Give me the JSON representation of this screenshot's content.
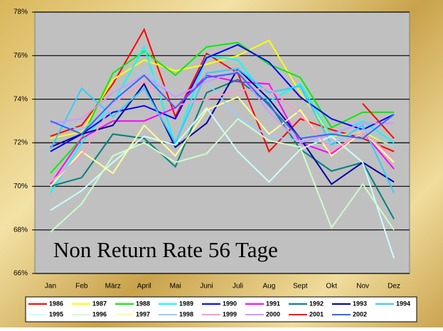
{
  "chart_data": {
    "type": "line",
    "annotation": "Non Return Rate 56 Tage",
    "categories": [
      "Jan",
      "Feb",
      "März",
      "April",
      "Mai",
      "Juni",
      "Juli",
      "Aug",
      "Sept",
      "Okt",
      "Nov",
      "Dez"
    ],
    "ylim": [
      66,
      78
    ],
    "yticks": [
      {
        "value": 66,
        "label": "66%"
      },
      {
        "value": 68,
        "label": "68%"
      },
      {
        "value": 70,
        "label": "70%"
      },
      {
        "value": 72,
        "label": "72%"
      },
      {
        "value": 74,
        "label": "74%"
      },
      {
        "value": 76,
        "label": "76%"
      },
      {
        "value": 78,
        "label": "78%"
      }
    ],
    "grid": true,
    "legend": "bottom",
    "series": [
      {
        "name": "1986",
        "color": "#ff0000",
        "values": [
          72.3,
          72.8,
          74.7,
          77.2,
          73.2,
          76.1,
          75.2,
          71.6,
          73.1,
          72.6,
          72.2,
          71.6
        ]
      },
      {
        "name": "1987",
        "color": "#ffff00",
        "values": [
          72.2,
          72.5,
          74.9,
          75.8,
          75.3,
          75.6,
          76.0,
          76.7,
          74.3,
          72.3,
          72.5,
          71.8
        ]
      },
      {
        "name": "1988",
        "color": "#00ee00",
        "values": [
          70.6,
          72.2,
          75.2,
          76.2,
          75.1,
          76.4,
          76.6,
          75.6,
          75.0,
          72.7,
          73.4,
          73.4
        ]
      },
      {
        "name": "1989",
        "color": "#00ffff",
        "values": [
          69.7,
          72.0,
          73.8,
          76.4,
          71.9,
          76.0,
          75.8,
          73.9,
          74.7,
          72.3,
          73.0,
          72.0
        ]
      },
      {
        "name": "1990",
        "color": "#0000ff",
        "values": [
          71.6,
          72.4,
          73.4,
          73.7,
          73.1,
          75.9,
          76.5,
          75.7,
          74.1,
          73.1,
          72.6,
          73.3
        ]
      },
      {
        "name": "1991",
        "color": "#ff00ff",
        "values": [
          70.1,
          72.2,
          73.0,
          73.0,
          73.6,
          75.1,
          74.8,
          74.7,
          72.0,
          71.5,
          72.5,
          70.8
        ]
      },
      {
        "name": "1992",
        "color": "#008080",
        "values": [
          70.0,
          70.4,
          72.4,
          72.2,
          70.9,
          74.3,
          74.9,
          73.8,
          71.7,
          70.7,
          71.1,
          68.5
        ]
      },
      {
        "name": "1993",
        "color": "#0000a0",
        "values": [
          71.8,
          72.4,
          72.8,
          74.7,
          71.8,
          72.9,
          75.4,
          74.0,
          72.2,
          70.1,
          71.1,
          70.2
        ]
      },
      {
        "name": "1994",
        "color": "#33ccff",
        "values": [
          71.7,
          74.5,
          73.2,
          74.5,
          72.0,
          75.2,
          75.4,
          74.3,
          74.6,
          71.9,
          72.8,
          69.7
        ]
      },
      {
        "name": "1995",
        "color": "#ccffff",
        "values": [
          68.9,
          69.8,
          71.1,
          72.3,
          71.9,
          73.6,
          71.6,
          70.2,
          71.7,
          72.3,
          71.1,
          66.7
        ]
      },
      {
        "name": "1996",
        "color": "#ccffcc",
        "values": [
          67.9,
          69.2,
          71.4,
          72.0,
          71.1,
          71.5,
          73.1,
          72.1,
          71.8,
          68.1,
          70.1,
          68.0
        ]
      },
      {
        "name": "1997",
        "color": "#ffff99",
        "values": [
          70.0,
          71.6,
          70.6,
          72.8,
          71.4,
          73.5,
          74.1,
          72.4,
          73.5,
          71.4,
          72.5,
          71.1
        ]
      },
      {
        "name": "1998",
        "color": "#99ccff",
        "values": [
          73.0,
          72.6,
          73.7,
          75.4,
          74.1,
          74.8,
          73.2,
          72.3,
          72.1,
          72.0,
          72.6,
          71.8
        ]
      },
      {
        "name": "1999",
        "color": "#ff99cc",
        "values": [
          70.2,
          71.4,
          73.8,
          74.8,
          73.7,
          74.0,
          74.4,
          74.5,
          73.3,
          71.6,
          72.5,
          71.3
        ]
      },
      {
        "name": "2000",
        "color": "#cc99ff",
        "values": [
          72.9,
          73.1,
          74.3,
          75.1,
          74.1,
          74.8,
          75.3,
          73.4,
          72.0,
          72.4,
          72.9,
          72.9
        ]
      },
      {
        "name": "2001",
        "color": "#ff0000",
        "values": [
          null,
          null,
          null,
          null,
          null,
          null,
          null,
          null,
          null,
          null,
          73.8,
          72.2
        ]
      },
      {
        "name": "2002",
        "color": "#3366ff",
        "values": [
          73.0,
          72.4,
          73.9,
          75.1,
          73.6,
          75.0,
          75.2,
          73.7,
          72.2,
          72.4,
          72.2,
          73.3
        ]
      }
    ]
  }
}
